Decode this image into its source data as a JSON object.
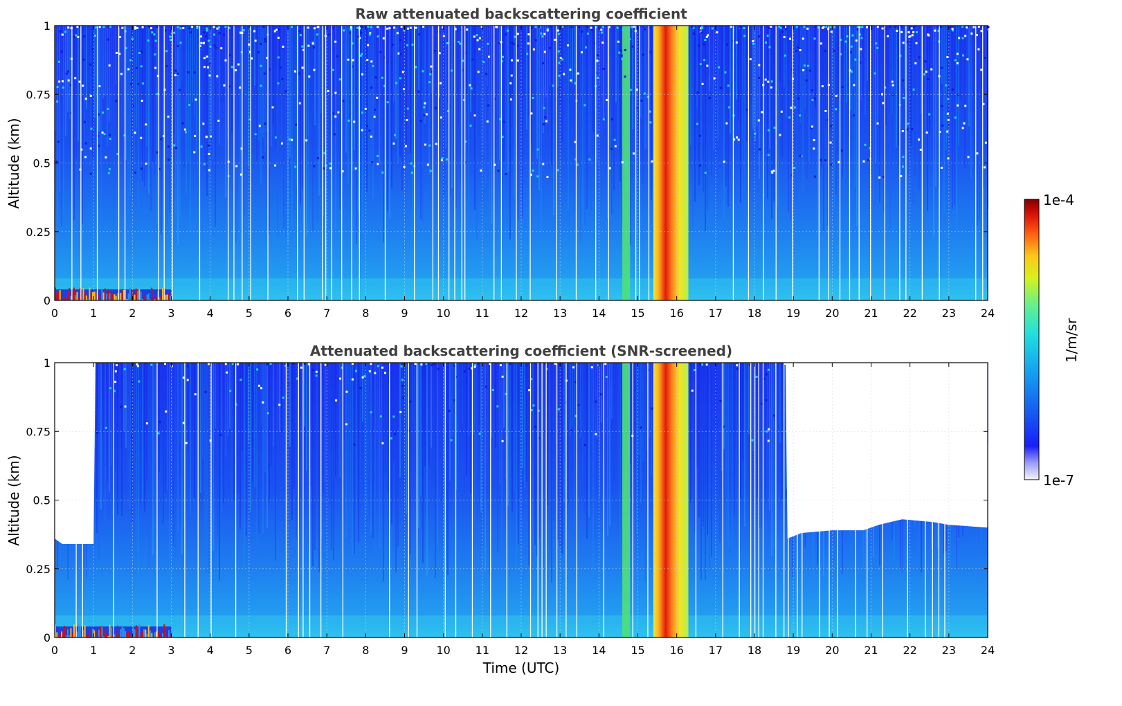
{
  "chart_data": [
    {
      "type": "heatmap",
      "title": "Raw attenuated backscattering coefficient",
      "xlabel": "",
      "ylabel": "Altitude (km)",
      "xlim": [
        0,
        24
      ],
      "ylim": [
        0,
        1
      ],
      "x_ticks": [
        "0",
        "1",
        "2",
        "3",
        "4",
        "5",
        "6",
        "7",
        "8",
        "9",
        "10",
        "11",
        "12",
        "13",
        "14",
        "15",
        "16",
        "17",
        "18",
        "19",
        "20",
        "21",
        "22",
        "23",
        "24"
      ],
      "y_ticks": [
        "0",
        "0.25",
        "0.5",
        "0.75",
        "1"
      ],
      "grid": true,
      "features": [
        {
          "name": "surface aerosol layer",
          "t_start": 0,
          "t_end": 3,
          "alt_top": 0.04,
          "level": "high"
        },
        {
          "name": "elevated backscatter band",
          "t_start": 14.6,
          "t_end": 14.8,
          "level": "medium"
        },
        {
          "name": "strong backscatter event",
          "t_start": 15.4,
          "t_end": 16.3,
          "level": "very high"
        }
      ]
    },
    {
      "type": "heatmap",
      "title": "Attenuated backscattering coefficient (SNR-screened)",
      "xlabel": "Time (UTC)",
      "ylabel": "Altitude (km)",
      "xlim": [
        0,
        24
      ],
      "ylim": [
        0,
        1
      ],
      "x_ticks": [
        "0",
        "1",
        "2",
        "3",
        "4",
        "5",
        "6",
        "7",
        "8",
        "9",
        "10",
        "11",
        "12",
        "13",
        "14",
        "15",
        "16",
        "17",
        "18",
        "19",
        "20",
        "21",
        "22",
        "23",
        "24"
      ],
      "y_ticks": [
        "0",
        "0.25",
        "0.5",
        "0.75",
        "1"
      ],
      "grid": true,
      "screening_top_km": [
        {
          "t": 0,
          "alt": 0.36
        },
        {
          "t": 0.2,
          "alt": 0.34
        },
        {
          "t": 1.0,
          "alt": 0.34
        },
        {
          "t": 1.05,
          "alt": 1.0
        },
        {
          "t": 18.8,
          "alt": 1.0
        },
        {
          "t": 18.85,
          "alt": 0.36
        },
        {
          "t": 19.2,
          "alt": 0.38
        },
        {
          "t": 20.0,
          "alt": 0.39
        },
        {
          "t": 20.8,
          "alt": 0.39
        },
        {
          "t": 21.2,
          "alt": 0.41
        },
        {
          "t": 21.8,
          "alt": 0.43
        },
        {
          "t": 22.6,
          "alt": 0.42
        },
        {
          "t": 23.0,
          "alt": 0.41
        },
        {
          "t": 24.0,
          "alt": 0.4
        }
      ]
    }
  ],
  "colorbar": {
    "label": "1/m/sr",
    "min_label": "1e-7",
    "max_label": "1e-4",
    "scale": "log",
    "colormap": "jet"
  }
}
